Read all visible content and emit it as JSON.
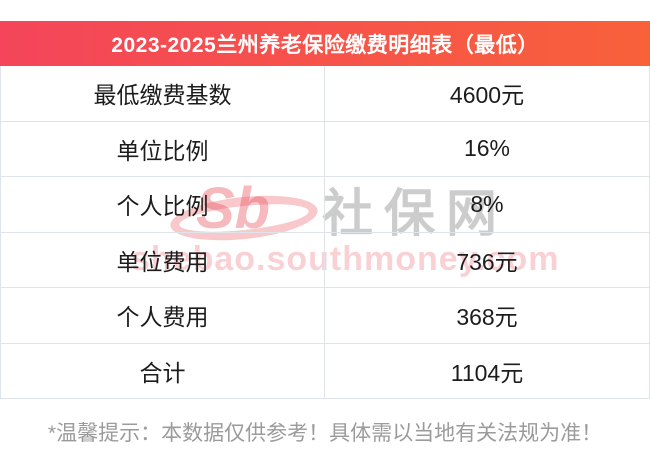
{
  "header": {
    "title": "2023-2025兰州养老保险缴费明细表（最低）"
  },
  "table": {
    "rows": [
      {
        "label": "最低缴费基数",
        "value": "4600元"
      },
      {
        "label": "单位比例",
        "value": "16%"
      },
      {
        "label": "个人比例",
        "value": "8%"
      },
      {
        "label": "单位费用",
        "value": "736元"
      },
      {
        "label": "个人费用",
        "value": "368元"
      },
      {
        "label": "合计",
        "value": "1104元"
      }
    ]
  },
  "watermark": {
    "logo": "Sb",
    "site_name": "社保网",
    "url": "shebao.southmoney.com"
  },
  "footer": {
    "note": "*温馨提示：本数据仅供参考！具体需以当地有关法规为准！"
  },
  "colors": {
    "header_gradient_left": "#f4455a",
    "header_gradient_right": "#f8613a",
    "divider": "#dfe3ea",
    "row_text": "#1c1c1c",
    "note_text": "#9b9b9b",
    "watermark_pink": "#e74a53"
  },
  "chart_data": {
    "type": "table",
    "title": "2023-2025兰州养老保险缴费明细表（最低）",
    "rows": [
      [
        "最低缴费基数",
        "4600元"
      ],
      [
        "单位比例",
        "16%"
      ],
      [
        "个人比例",
        "8%"
      ],
      [
        "单位费用",
        "736元"
      ],
      [
        "个人费用",
        "368元"
      ],
      [
        "合计",
        "1104元"
      ]
    ],
    "footnote": "*温馨提示：本数据仅供参考！具体需以当地有关法规为准！"
  }
}
